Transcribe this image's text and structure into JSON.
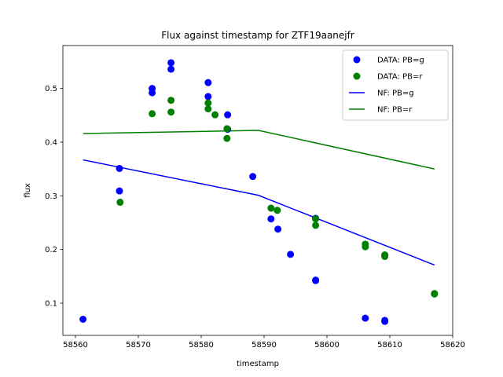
{
  "chart_data": {
    "type": "scatter",
    "title": "Flux against timestamp for ZTF19aanejfr",
    "xlabel": "timestamp",
    "ylabel": "flux",
    "xlim": [
      58558,
      58620
    ],
    "ylim": [
      0.04,
      0.58
    ],
    "xticks": [
      58560,
      58570,
      58580,
      58590,
      58600,
      58610,
      58620
    ],
    "yticks": [
      0.1,
      0.2,
      0.3,
      0.4,
      0.5
    ],
    "grid": false,
    "legend_position": "top-right",
    "series": [
      {
        "name": "DATA: PB=g",
        "kind": "points",
        "color": "#0000ff",
        "points": [
          [
            58561.2,
            0.07
          ],
          [
            58567.0,
            0.351
          ],
          [
            58567.0,
            0.309
          ],
          [
            58572.2,
            0.5
          ],
          [
            58572.2,
            0.492
          ],
          [
            58575.2,
            0.548
          ],
          [
            58575.2,
            0.536
          ],
          [
            58581.1,
            0.511
          ],
          [
            58581.1,
            0.485
          ],
          [
            58584.2,
            0.451
          ],
          [
            58584.2,
            0.424
          ],
          [
            58588.2,
            0.336
          ],
          [
            58591.1,
            0.257
          ],
          [
            58592.2,
            0.238
          ],
          [
            58594.2,
            0.191
          ],
          [
            58598.2,
            0.258
          ],
          [
            58598.2,
            0.143
          ],
          [
            58598.2,
            0.142
          ],
          [
            58606.1,
            0.072
          ],
          [
            58609.2,
            0.068
          ],
          [
            58609.2,
            0.066
          ]
        ]
      },
      {
        "name": "DATA: PB=r",
        "kind": "points",
        "color": "#008000",
        "points": [
          [
            58567.1,
            0.288
          ],
          [
            58572.2,
            0.453
          ],
          [
            58575.2,
            0.478
          ],
          [
            58575.2,
            0.456
          ],
          [
            58581.1,
            0.473
          ],
          [
            58581.1,
            0.462
          ],
          [
            58582.2,
            0.451
          ],
          [
            58584.1,
            0.425
          ],
          [
            58584.1,
            0.407
          ],
          [
            58591.1,
            0.277
          ],
          [
            58592.1,
            0.273
          ],
          [
            58598.2,
            0.257
          ],
          [
            58598.2,
            0.245
          ],
          [
            58606.1,
            0.21
          ],
          [
            58606.1,
            0.205
          ],
          [
            58609.2,
            0.19
          ],
          [
            58609.2,
            0.187
          ],
          [
            58617.1,
            0.118
          ],
          [
            58617.1,
            0.117
          ]
        ]
      },
      {
        "name": "NF: PB=g",
        "kind": "line",
        "color": "#0000ff",
        "points": [
          [
            58561.2,
            0.367
          ],
          [
            58589.1,
            0.301
          ],
          [
            58617.1,
            0.171
          ]
        ]
      },
      {
        "name": "NF: PB=r",
        "kind": "line",
        "color": "#008000",
        "points": [
          [
            58561.2,
            0.416
          ],
          [
            58589.1,
            0.422
          ],
          [
            58617.1,
            0.35
          ]
        ]
      }
    ]
  }
}
